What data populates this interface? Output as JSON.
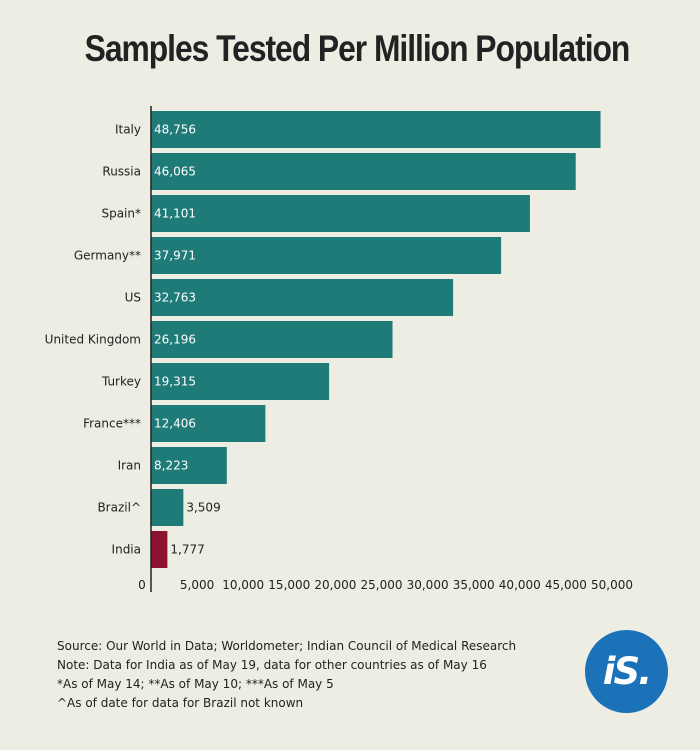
{
  "title": "Samples Tested Per Million Population",
  "chart_data": {
    "type": "bar",
    "orientation": "horizontal",
    "title": "Samples Tested Per Million Population",
    "xlabel": "",
    "ylabel": "",
    "categories": [
      "Italy",
      "Russia",
      "Spain*",
      "Germany**",
      "US",
      "United Kingdom",
      "Turkey",
      "France***",
      "Iran",
      "Brazil^",
      "India"
    ],
    "values": [
      48756,
      46065,
      41101,
      37971,
      32763,
      26196,
      19315,
      12406,
      8223,
      3509,
      1777
    ],
    "data_labels": [
      "48,756",
      "46,065",
      "41,101",
      "37,971",
      "32,763",
      "26,196",
      "19,315",
      "12,406",
      "8,223",
      "3,509",
      "1,777"
    ],
    "x_ticks": [
      0,
      5000,
      10000,
      15000,
      20000,
      25000,
      30000,
      35000,
      40000,
      45000,
      50000
    ],
    "x_tick_labels": [
      "0",
      "5,000",
      "10,000",
      "15,000",
      "20,000",
      "25,000",
      "30,000",
      "35,000",
      "40,000",
      "45,000",
      "50,000"
    ],
    "xlim": [
      0,
      50000
    ],
    "grid": false,
    "colors": {
      "default": "#1f7b77",
      "highlight": "#8e1230",
      "highlight_category": "India"
    }
  },
  "notes": [
    "Source: Our World in Data; Worldometer; Indian Council of Medical Research",
    "Note: Data for India as of May 19, data for other countries as of May 16",
    "*As of May 14; **As of May 10; ***As of May 5",
    "^As of date for data for Brazil not known"
  ],
  "logo": {
    "text": "iS.",
    "color": "#1b72b9"
  }
}
